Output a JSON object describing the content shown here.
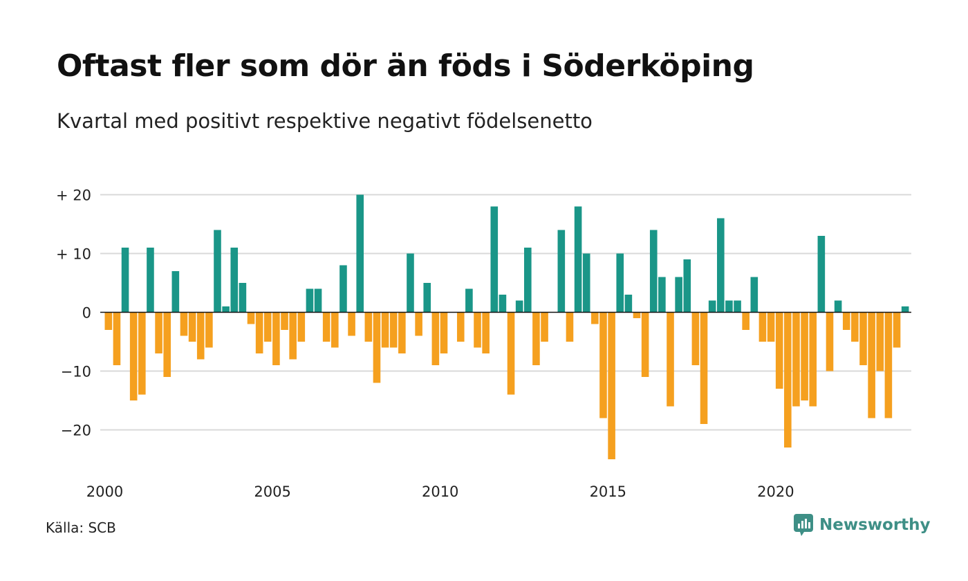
{
  "title": "Oftast fler som dör än föds i Söderköping",
  "subtitle": "Kvartal med positivt respektive negativt födelsenetto",
  "source": "Källa: SCB",
  "brand": "Newsworthy",
  "colors": {
    "positive": "#1a9688",
    "negative": "#f5a01f",
    "grid": "#d9d9d9",
    "baseline": "#111111",
    "brand": "#3e8f86"
  },
  "chart_data": {
    "type": "bar",
    "x_start": 2000,
    "periods_per_year": 4,
    "x_ticks": [
      "2000",
      "2005",
      "2010",
      "2015",
      "2020"
    ],
    "y_ticks": [
      {
        "value": 20,
        "label": "+ 20"
      },
      {
        "value": 10,
        "label": "+ 10"
      },
      {
        "value": 0,
        "label": "0"
      },
      {
        "value": -10,
        "label": "−10"
      },
      {
        "value": -20,
        "label": "−20"
      }
    ],
    "ylim": [
      -25,
      20
    ],
    "grid": true,
    "values": [
      -3,
      -9,
      11,
      -15,
      -14,
      11,
      -7,
      -11,
      7,
      -4,
      -5,
      -8,
      -6,
      14,
      1,
      11,
      5,
      -2,
      -7,
      -5,
      -9,
      -3,
      -8,
      -5,
      4,
      4,
      -5,
      -6,
      8,
      -4,
      20,
      -5,
      -12,
      -6,
      -6,
      -7,
      10,
      -4,
      5,
      -9,
      -7,
      0,
      -5,
      4,
      -6,
      -7,
      18,
      3,
      -14,
      2,
      11,
      -9,
      -5,
      0,
      14,
      -5,
      18,
      10,
      -2,
      -18,
      -25,
      10,
      3,
      -1,
      -11,
      14,
      6,
      -16,
      6,
      9,
      -9,
      -19,
      2,
      16,
      2,
      2,
      -3,
      6,
      -5,
      -5,
      -13,
      -23,
      -16,
      -15,
      -16,
      13,
      -10,
      2,
      -3,
      -5,
      -9,
      -18,
      -10,
      -18,
      -6,
      1
    ]
  }
}
